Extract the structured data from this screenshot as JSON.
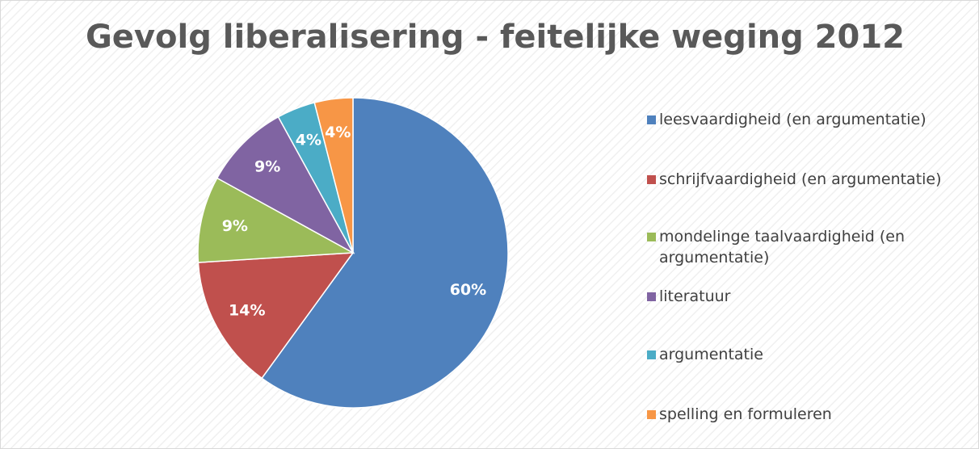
{
  "chart_data": {
    "type": "pie",
    "title": "Gevolg liberalisering - feitelijke weging 2012",
    "categories": [
      "leesvaardigheid (en argumentatie)",
      "schrijfvaardigheid (en argumentatie)",
      "mondelinge taalvaardigheid (en argumentatie)",
      "literatuur",
      "argumentatie",
      "spelling en formuleren"
    ],
    "values": [
      60,
      14,
      9,
      9,
      4,
      4
    ],
    "value_labels": [
      "60%",
      "14%",
      "9%",
      "9%",
      "4%",
      "4%"
    ],
    "colors": [
      "#4f81bd",
      "#c0504d",
      "#9bbb59",
      "#8064a2",
      "#4bacc6",
      "#f79646"
    ],
    "legend": "right"
  }
}
